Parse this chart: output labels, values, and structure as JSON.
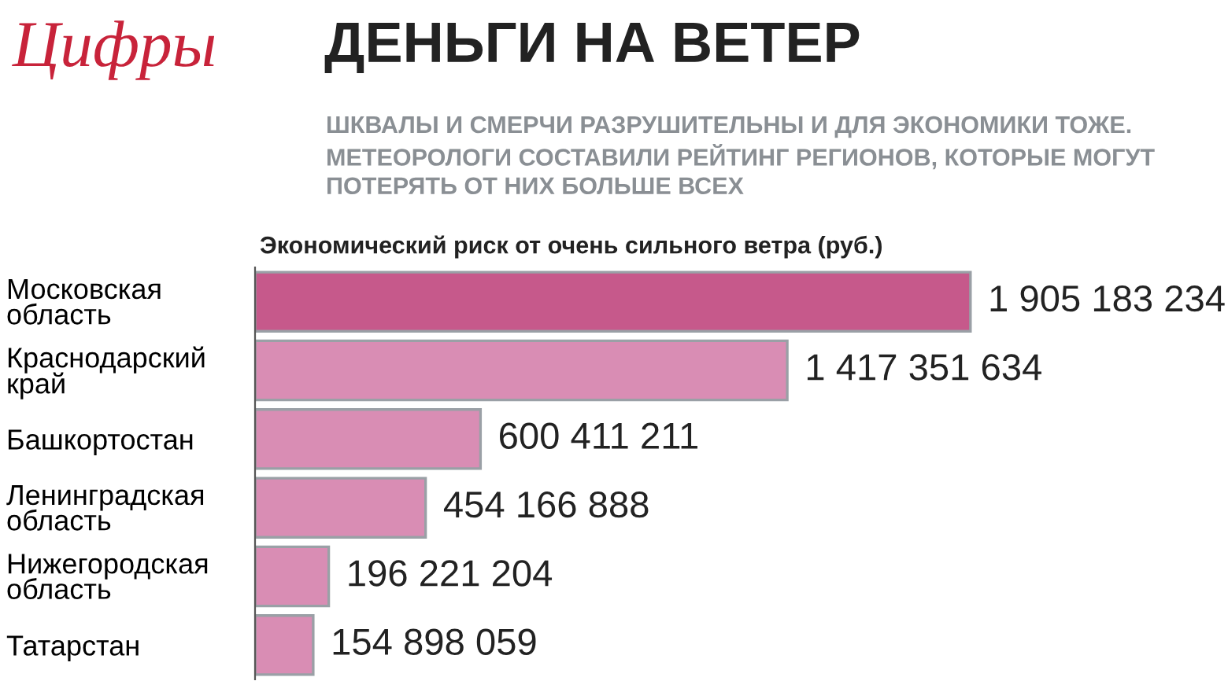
{
  "chart_data": {
    "type": "bar",
    "orientation": "horizontal",
    "title": "ДЕНЬГИ НА ВЕТЕР",
    "subtitle": "ШКВАЛЫ И СМЕРЧИ РАЗРУШИТЕЛЬНЫ И ДЛЯ ЭКОНОМИКИ ТОЖЕ.\nМЕТЕОРОЛОГИ СОСТАВИЛИ РЕЙТИНГ РЕГИОНОВ, КОТОРЫЕ МОГУТ\nПОТЕРЯТЬ ОТ НИХ БОЛЬШЕ ВСЕХ",
    "annotations": [
      "Цифры",
      "Экономический риск от очень сильного ветра (руб.)"
    ],
    "categories": [
      "Московская\nобласть",
      "Краснодарский\nкрай",
      "Башкортостан",
      "Ленинградская\nобласть",
      "Нижегородская\nобласть",
      "Татарстан"
    ],
    "values": [
      1905183234,
      1417351634,
      600411211,
      454166888,
      196221204,
      154898059
    ],
    "value_labels": [
      "1 905 183 234",
      "1 417 351 634",
      "600 411 211",
      "454 166 888",
      "196 221 204",
      "154 898 059"
    ],
    "colors": [
      "#c6598b",
      "#d98db4",
      "#d98db4",
      "#d98db4",
      "#d98db4",
      "#d98db4"
    ]
  }
}
